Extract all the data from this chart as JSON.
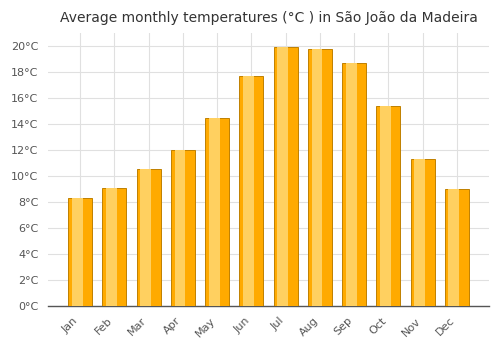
{
  "title": "Average monthly temperatures (°C ) in São João da Madeira",
  "months": [
    "Jan",
    "Feb",
    "Mar",
    "Apr",
    "May",
    "Jun",
    "Jul",
    "Aug",
    "Sep",
    "Oct",
    "Nov",
    "Dec"
  ],
  "temperatures": [
    8.3,
    9.1,
    10.5,
    12.0,
    14.5,
    17.7,
    19.9,
    19.8,
    18.7,
    15.4,
    11.3,
    9.0
  ],
  "bar_color_main": "#FFAA00",
  "bar_color_light": "#FFD060",
  "bar_color_edge": "#C08000",
  "ylim": [
    0,
    21
  ],
  "ytick_values": [
    0,
    2,
    4,
    6,
    8,
    10,
    12,
    14,
    16,
    18,
    20
  ],
  "plot_bg_color": "#ffffff",
  "fig_bg_color": "#ffffff",
  "grid_color": "#e0e0e0",
  "title_fontsize": 10,
  "tick_fontsize": 8,
  "bar_width": 0.7,
  "spine_color": "#555555",
  "label_color": "#555555"
}
